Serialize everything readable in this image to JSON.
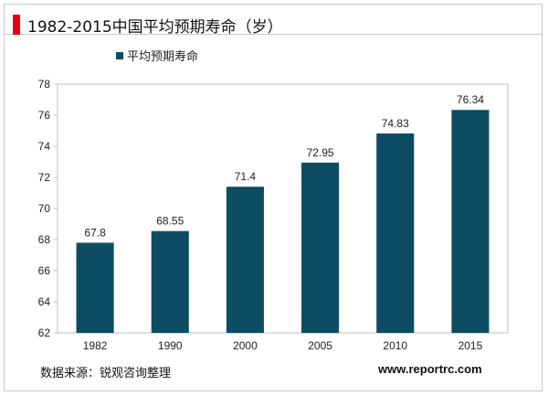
{
  "header": {
    "title": "1982-2015中国平均预期寿命（岁）",
    "accent_color": "#e60012"
  },
  "footer": {
    "source": "数据来源：锐观咨询整理",
    "website": "www.reportrc.com"
  },
  "chart_data": {
    "type": "bar",
    "categories": [
      "1982",
      "1990",
      "2000",
      "2005",
      "2010",
      "2015"
    ],
    "series": [
      {
        "name": "平均预期寿命",
        "values": [
          67.8,
          68.55,
          71.4,
          72.95,
          74.83,
          76.34
        ],
        "color": "#0d4d63"
      }
    ],
    "data_labels": [
      "67.8",
      "68.55",
      "71.4",
      "72.95",
      "74.83",
      "76.34"
    ],
    "ylim": [
      62,
      78
    ],
    "yticks": [
      62,
      64,
      66,
      68,
      70,
      72,
      74,
      76,
      78
    ],
    "grid": false,
    "legend": "top-left"
  }
}
